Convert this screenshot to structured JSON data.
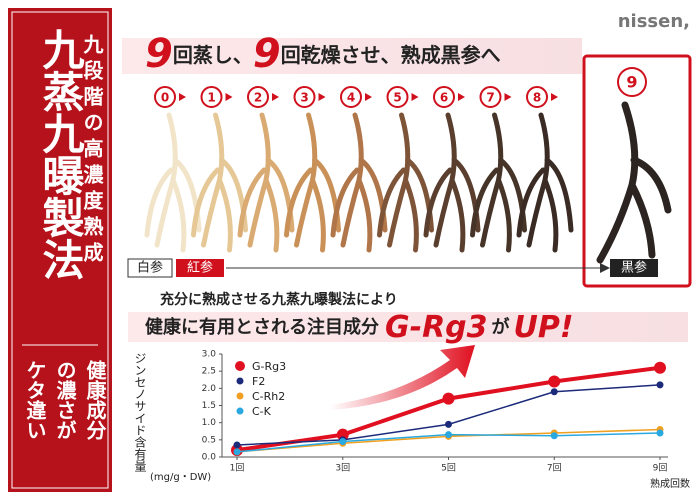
{
  "brand": "nissen,",
  "side": {
    "title": "九蒸九曝製法",
    "subtitle": "九段階の高濃度熟成",
    "tagline": [
      "健康成分",
      "の濃さが",
      "ケタ違い"
    ]
  },
  "headline": [
    "9",
    "回蒸し、",
    "9",
    "回乾燥させ、熟成黒参へ"
  ],
  "steps": [
    "0",
    "1",
    "2",
    "3",
    "4",
    "5",
    "6",
    "7",
    "8"
  ],
  "final_step": "9",
  "stages": [
    "白参",
    "紅参",
    "黒参"
  ],
  "copy": {
    "line1": "充分に熟成させる九蒸九曝製法により",
    "line2": "健康に有用とされる注目成分",
    "highlight": "G-Rg3",
    "particle": "が",
    "up": "UP!"
  },
  "chart_data": {
    "type": "line",
    "ylabel": "ジンセノサイド含有量",
    "yunit": "(mg/g・DW)",
    "xlabel": "熟成回数",
    "categories": [
      "1回",
      "3回",
      "5回",
      "7回",
      "9回"
    ],
    "series": [
      {
        "name": "G-Rg3",
        "color": "#e01020",
        "values": [
          0.2,
          0.65,
          1.7,
          2.2,
          2.6
        ]
      },
      {
        "name": "F2",
        "color": "#1c2a7a",
        "values": [
          0.35,
          0.5,
          0.95,
          1.9,
          2.1
        ]
      },
      {
        "name": "C-Rh2",
        "color": "#f0a020",
        "values": [
          0.15,
          0.4,
          0.6,
          0.7,
          0.8
        ]
      },
      {
        "name": "C-K",
        "color": "#2aa8e0",
        "values": [
          0.15,
          0.45,
          0.65,
          0.62,
          0.7
        ]
      }
    ],
    "ylim": [
      0,
      3
    ],
    "yticks": [
      {
        "value": 0,
        "label": "0.0"
      },
      0.5,
      {
        "value": 1,
        "label": "1.0"
      },
      1.5,
      {
        "value": 2,
        "label": "2.0"
      },
      2.5,
      {
        "value": 3,
        "label": "3.0"
      }
    ],
    "grid": false
  }
}
